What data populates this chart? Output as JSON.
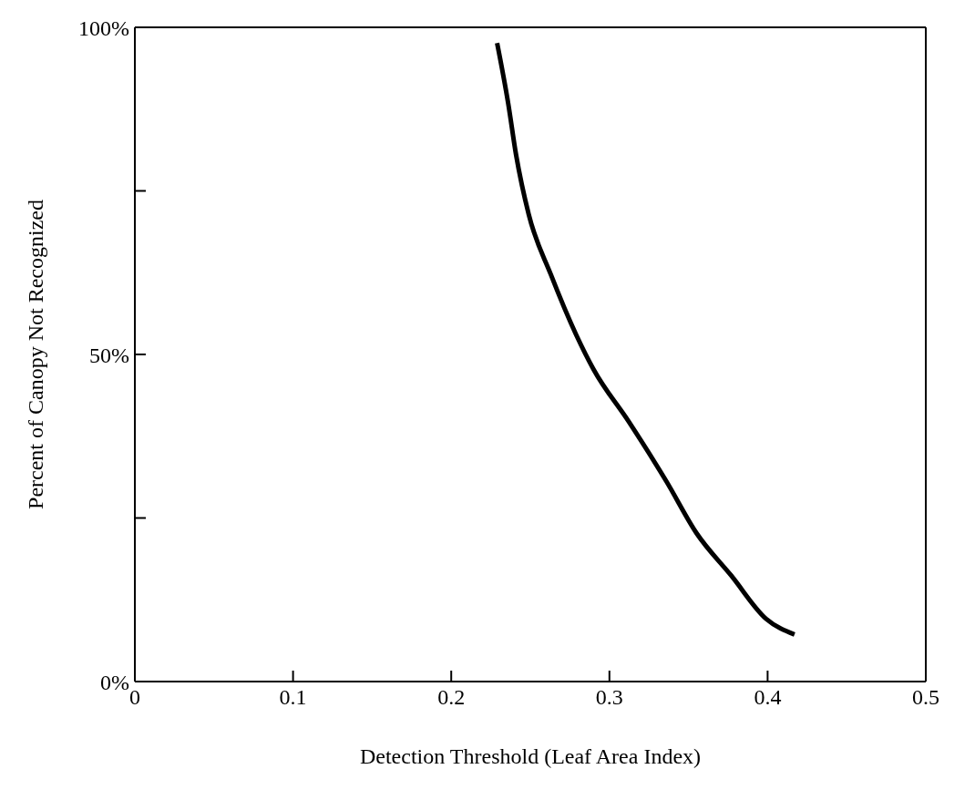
{
  "chart_data": {
    "type": "line",
    "xlabel": "Detection Threshold (Leaf Area Index)",
    "ylabel": "Percent of Canopy Not Recognized",
    "xlim": [
      0,
      0.5
    ],
    "xticks": [
      0,
      0.1,
      0.2,
      0.3,
      0.4,
      0.5
    ],
    "ylim": [
      0,
      100
    ],
    "yticks": [
      {
        "value": 0,
        "label": "0%"
      },
      {
        "value": 25,
        "label": null
      },
      {
        "value": 50,
        "label": "50%"
      },
      {
        "value": 75,
        "label": null
      },
      {
        "value": 100,
        "label": "100%"
      }
    ],
    "marker": "none",
    "line_style": "solid",
    "series": [
      {
        "color": "#000000",
        "x": [
          0.229,
          0.236,
          0.241,
          0.249,
          0.263,
          0.279,
          0.29,
          0.312,
          0.336,
          0.355,
          0.377,
          0.399,
          0.417
        ],
        "values": [
          97.6,
          88.4,
          80.5,
          71.4,
          62.2,
          53,
          47.7,
          39.8,
          30.6,
          22.7,
          16.2,
          9.6,
          7.2
        ]
      }
    ]
  }
}
